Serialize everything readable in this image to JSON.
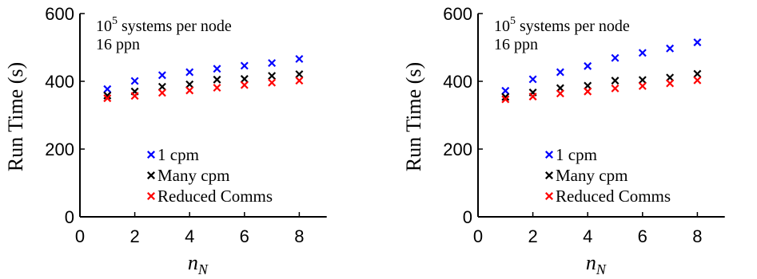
{
  "chart_data": [
    {
      "type": "scatter",
      "xlabel": "n",
      "xlabel_sub": "N",
      "ylabel": "Run Time (s)",
      "xlim": [
        0,
        9
      ],
      "ylim": [
        0,
        600
      ],
      "xticks": [
        "0",
        "2",
        "4",
        "6",
        "8"
      ],
      "yticks": [
        "0",
        "200",
        "400",
        "600"
      ],
      "annotation_lines": [
        "systems per node",
        "16 ppn"
      ],
      "annotation_base": "10",
      "annotation_exp": "5",
      "legend_position": "center",
      "x": [
        1,
        2,
        3,
        4,
        5,
        6,
        7,
        8
      ],
      "series": [
        {
          "name": "1 cpm",
          "color": "#0000ff",
          "values": [
            377,
            401,
            418,
            427,
            437,
            446,
            454,
            466
          ]
        },
        {
          "name": "Many cpm",
          "color": "#000000",
          "values": [
            358,
            370,
            384,
            391,
            405,
            407,
            416,
            421
          ]
        },
        {
          "name": "Reduced Comms",
          "color": "#ff0000",
          "values": [
            350,
            357,
            366,
            373,
            381,
            389,
            396,
            402
          ]
        }
      ]
    },
    {
      "type": "scatter",
      "xlabel": "n",
      "xlabel_sub": "N",
      "ylabel": "Run Time (s)",
      "xlim": [
        0,
        9
      ],
      "ylim": [
        0,
        600
      ],
      "xticks": [
        "0",
        "2",
        "4",
        "6",
        "8"
      ],
      "yticks": [
        "0",
        "200",
        "400",
        "600"
      ],
      "annotation_lines": [
        "systems per node",
        "16 ppn"
      ],
      "annotation_base": "10",
      "annotation_exp": "5",
      "legend_position": "center",
      "x": [
        1,
        2,
        3,
        4,
        5,
        6,
        7,
        8
      ],
      "series": [
        {
          "name": "1 cpm",
          "color": "#0000ff",
          "values": [
            372,
            406,
            427,
            445,
            469,
            484,
            497,
            515
          ]
        },
        {
          "name": "Many cpm",
          "color": "#000000",
          "values": [
            354,
            367,
            380,
            387,
            402,
            404,
            411,
            422
          ]
        },
        {
          "name": "Reduced Comms",
          "color": "#ff0000",
          "values": [
            347,
            355,
            364,
            370,
            379,
            386,
            394,
            403
          ]
        }
      ]
    }
  ]
}
